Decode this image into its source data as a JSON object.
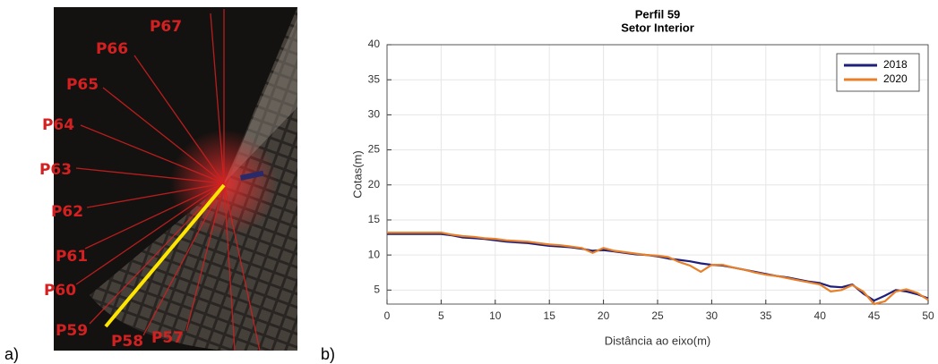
{
  "panel_labels": [
    "a)",
    "b)"
  ],
  "photo_labels": [
    "P67",
    "P66",
    "P65",
    "P64",
    "P63",
    "P62",
    "P61",
    "P60",
    "P59",
    "P58",
    "P57"
  ],
  "chart_data": {
    "type": "line",
    "title": "Perfil 59",
    "subtitle": "Setor Interior",
    "xlabel": "Distância ao eixo(m)",
    "ylabel": "Cotas(m)",
    "x": [
      0,
      1,
      2,
      3,
      4,
      5,
      6,
      7,
      8,
      9,
      10,
      11,
      12,
      13,
      14,
      15,
      16,
      17,
      18,
      19,
      20,
      21,
      22,
      23,
      24,
      25,
      26,
      27,
      28,
      29,
      30,
      31,
      32,
      33,
      34,
      35,
      36,
      37,
      38,
      39,
      40,
      41,
      42,
      43,
      44,
      45,
      46,
      47,
      48,
      49,
      50
    ],
    "series": [
      {
        "name": "2018",
        "color": "#1f1f7a",
        "values": [
          13,
          13,
          13,
          13,
          13,
          13,
          12.8,
          12.5,
          12.4,
          12.3,
          12.1,
          11.9,
          11.8,
          11.7,
          11.5,
          11.3,
          11.2,
          11.1,
          10.9,
          10.6,
          10.7,
          10.5,
          10.3,
          10.1,
          10,
          9.8,
          9.5,
          9.3,
          9.1,
          8.8,
          8.6,
          8.5,
          8.2,
          7.9,
          7.6,
          7.3,
          7,
          6.8,
          6.5,
          6.2,
          6,
          5.5,
          5.4,
          5.8,
          4.5,
          3.5,
          4.2,
          5,
          4.8,
          4.4,
          3.8
        ]
      },
      {
        "name": "2020",
        "color": "#e8802a",
        "values": [
          13.2,
          13.2,
          13.2,
          13.2,
          13.2,
          13.2,
          12.9,
          12.7,
          12.6,
          12.4,
          12.3,
          12.1,
          12,
          11.9,
          11.7,
          11.5,
          11.4,
          11.2,
          11,
          10.3,
          11,
          10.6,
          10.4,
          10.2,
          10,
          9.9,
          9.7,
          9,
          8.5,
          7.6,
          8.6,
          8.6,
          8.2,
          7.9,
          7.5,
          7.2,
          7,
          6.7,
          6.4,
          6.1,
          5.8,
          4.8,
          5,
          5.7,
          4.8,
          3,
          3.4,
          4.8,
          5.1,
          4.6,
          3.6
        ]
      }
    ],
    "xlim": [
      0,
      50
    ],
    "xticks": [
      0,
      5,
      10,
      15,
      20,
      25,
      30,
      35,
      40,
      45,
      50
    ],
    "ylim": [
      3,
      40
    ],
    "yticks": [
      5,
      10,
      15,
      20,
      25,
      30,
      35,
      40
    ],
    "grid": true,
    "legend": "upper right"
  }
}
